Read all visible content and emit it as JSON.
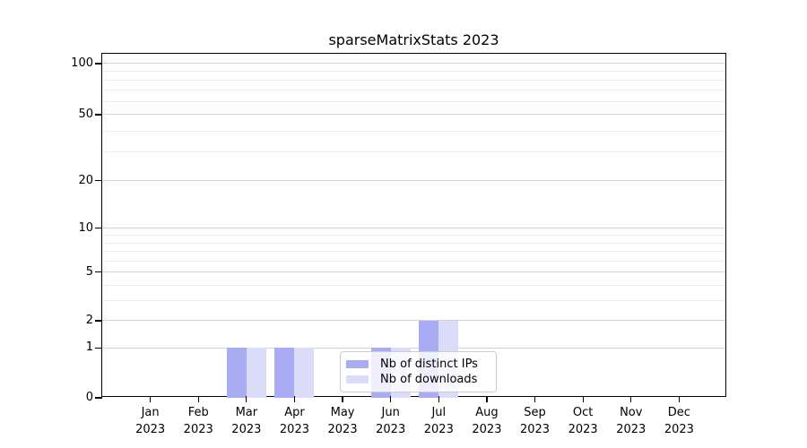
{
  "figure": {
    "title": "sparseMatrixStats 2023",
    "background_color": "#ffffff"
  },
  "chart_data": {
    "type": "bar",
    "title": "sparseMatrixStats 2023",
    "xlabel": "",
    "ylabel": "",
    "categories": [
      "Jan 2023",
      "Feb 2023",
      "Mar 2023",
      "Apr 2023",
      "May 2023",
      "Jun 2023",
      "Jul 2023",
      "Aug 2023",
      "Sep 2023",
      "Oct 2023",
      "Nov 2023",
      "Dec 2023"
    ],
    "x_tick_months": [
      "Jan",
      "Feb",
      "Mar",
      "Apr",
      "May",
      "Jun",
      "Jul",
      "Aug",
      "Sep",
      "Oct",
      "Nov",
      "Dec"
    ],
    "x_tick_year": "2023",
    "series": [
      {
        "name": "Nb of distinct IPs",
        "color": "#aaacf3",
        "values": [
          0,
          0,
          1,
          1,
          0,
          1,
          2,
          0,
          0,
          0,
          0,
          0
        ]
      },
      {
        "name": "Nb of downloads",
        "color": "#dbdcf9",
        "values": [
          0,
          0,
          1,
          1,
          0,
          1,
          2,
          0,
          0,
          0,
          0,
          0
        ]
      }
    ],
    "y_axis": {
      "scale": "log-like",
      "tick_values": [
        100,
        50,
        20,
        10,
        5,
        2,
        1,
        0
      ],
      "major_grid_values": [
        1,
        2,
        5,
        10,
        20,
        50,
        100
      ],
      "minor_grid_values": [
        3,
        4,
        6,
        7,
        8,
        9,
        30,
        40,
        60,
        70,
        80,
        90
      ],
      "ylim": [
        0,
        115
      ]
    },
    "grid": true,
    "legend": {
      "position": "lower-center",
      "entries": [
        "Nb of distinct IPs",
        "Nb of downloads"
      ]
    }
  },
  "colors": {
    "axis": "#000000",
    "grid_major": "#d2d2d2",
    "grid_minor": "#ededed",
    "bar_distinct_ips": "#aaacf3",
    "bar_downloads": "#dbdcf9",
    "legend_border": "#cccccc"
  }
}
